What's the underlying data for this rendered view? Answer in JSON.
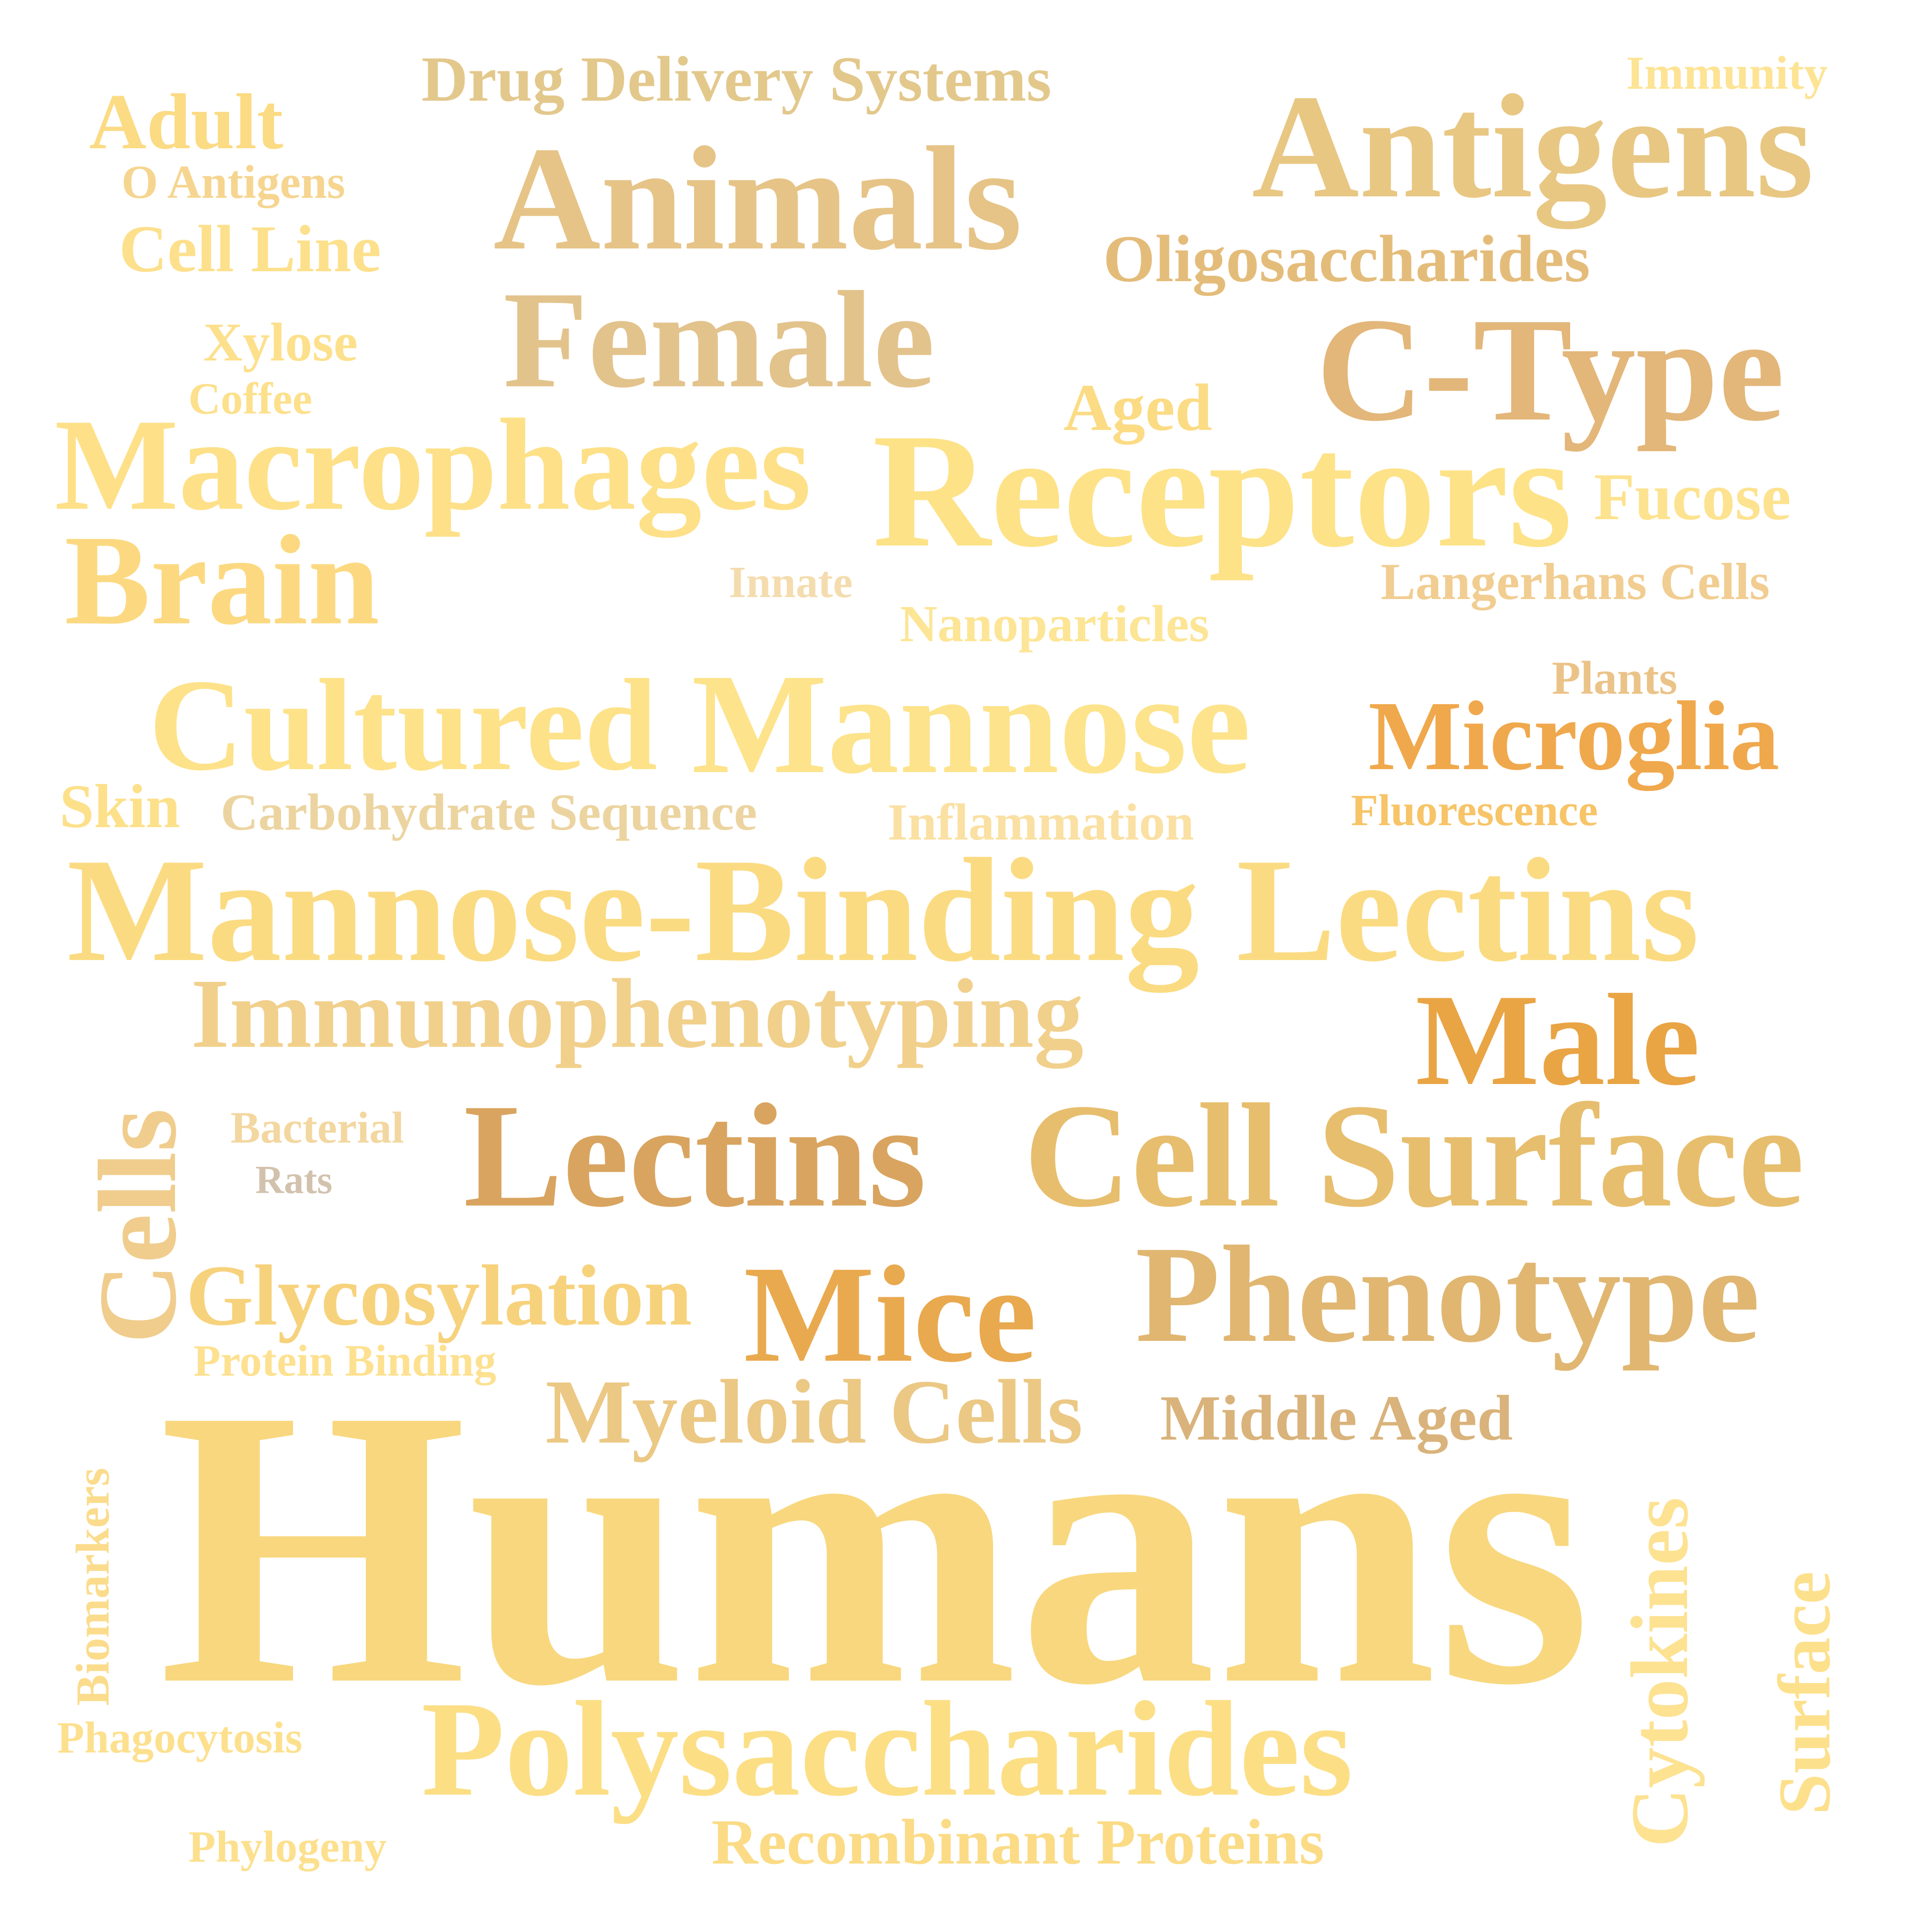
{
  "word_cloud": {
    "words": {
      "humans": {
        "text": "Humans",
        "color": "#f8d77e"
      },
      "mannose_bl": {
        "text": "Mannose-Binding Lectins",
        "color": "#fbdb82"
      },
      "receptors": {
        "text": "Receptors",
        "color": "#fde287"
      },
      "lectins": {
        "text": "Lectins",
        "color": "#d9a45f"
      },
      "cell_surface": {
        "text": "Cell Surface",
        "color": "#e7be6e"
      },
      "animals": {
        "text": "Animals",
        "color": "#e6c487"
      },
      "antigens": {
        "text": "Antigens",
        "color": "#e8c783"
      },
      "c_type": {
        "text": "C-Type",
        "color": "#e3b679"
      },
      "female": {
        "text": "Female",
        "color": "#e3c38c"
      },
      "macrophages": {
        "text": "Macrophages",
        "color": "#fde088"
      },
      "brain": {
        "text": "Brain",
        "color": "#fcd981"
      },
      "cultured": {
        "text": "Cultured",
        "color": "#fde28a"
      },
      "mannose": {
        "text": "Mannose",
        "color": "#fde38b"
      },
      "microglia": {
        "text": "Microglia",
        "color": "#f0a84c"
      },
      "male": {
        "text": "Male",
        "color": "#e9a444"
      },
      "immunophenotyping": {
        "text": "Immunophenotyping",
        "color": "#f1d08c"
      },
      "mice": {
        "text": "Mice",
        "color": "#e9a94f"
      },
      "phenotype": {
        "text": "Phenotype",
        "color": "#e0b671"
      },
      "polysaccharides": {
        "text": "Polysaccharides",
        "color": "#fcde85"
      },
      "glycosylation": {
        "text": "Glycosylation",
        "color": "#f7d27c"
      },
      "myeloid_cells": {
        "text": "Myeloid Cells",
        "color": "#ebc884"
      },
      "middle_aged": {
        "text": "Middle Aged",
        "color": "#d9b37b"
      },
      "oligosaccharides": {
        "text": "Oligosaccharides",
        "color": "#e4bc7a"
      },
      "drug_delivery": {
        "text": "Drug Delivery Systems",
        "color": "#e3c88c"
      },
      "adult": {
        "text": "Adult",
        "color": "#fbdb83"
      },
      "o_antigens": {
        "text": "O Antigens",
        "color": "#f6d590"
      },
      "cell_line": {
        "text": "Cell Line",
        "color": "#fde08c"
      },
      "immunity": {
        "text": "Immunity",
        "color": "#fde394"
      },
      "xylose": {
        "text": "Xylose",
        "color": "#fde08c"
      },
      "coffee": {
        "text": "Coffee",
        "color": "#fde08c"
      },
      "aged": {
        "text": "Aged",
        "color": "#fbdb84"
      },
      "fucose": {
        "text": "Fucose",
        "color": "#fde28f"
      },
      "innate": {
        "text": "Innate",
        "color": "#f4dcae"
      },
      "langerhans": {
        "text": "Langerhans Cells",
        "color": "#f1cd91"
      },
      "nanoparticles": {
        "text": "Nanoparticles",
        "color": "#fde596"
      },
      "plants": {
        "text": "Plants",
        "color": "#ebc388"
      },
      "skin": {
        "text": "Skin",
        "color": "#fde08a"
      },
      "carb_sequence": {
        "text": "Carbohydrate Sequence",
        "color": "#ecd4a0"
      },
      "inflammation": {
        "text": "Inflammation",
        "color": "#fae0a2"
      },
      "fluorescence": {
        "text": "Fluorescence",
        "color": "#f7c468"
      },
      "bacterial": {
        "text": "Bacterial",
        "color": "#f3d7a0"
      },
      "rats": {
        "text": "Rats",
        "color": "#d2c2ad"
      },
      "protein_binding": {
        "text": "Protein Binding",
        "color": "#fde190"
      },
      "phagocytosis": {
        "text": "Phagocytosis",
        "color": "#fde08e"
      },
      "phylogeny": {
        "text": "Phylogeny",
        "color": "#fde08e"
      },
      "recombinant": {
        "text": "Recombinant Proteins",
        "color": "#fbdb85"
      },
      "cells": {
        "text": "Cells",
        "color": "#f0cd8d"
      },
      "biomarkers": {
        "text": "Biomarkers",
        "color": "#fbdc8c"
      },
      "cytokines": {
        "text": "Cytokines",
        "color": "#fde292"
      },
      "surface": {
        "text": "Surface",
        "color": "#fde08c"
      }
    }
  }
}
